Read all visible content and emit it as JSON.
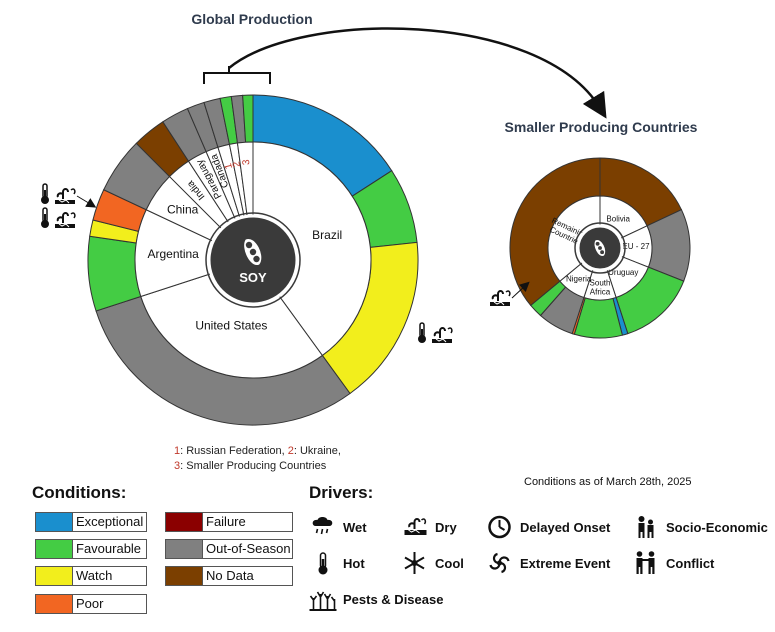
{
  "colors": {
    "exceptional": "#1a8fce",
    "favourable": "#44cc44",
    "watch": "#f2ee1c",
    "poor": "#f26622",
    "failure": "#8b0000",
    "out_of_season": "#808080",
    "no_data": "#7b3f00"
  },
  "footnote": {
    "n1": "1",
    "t1": ": Russian Federation, ",
    "n2": "2",
    "t2": ": Ukraine,",
    "n3": "3",
    "t3": ": Smaller Producing Countries"
  },
  "date_note": "Conditions as of March 28th, 2025",
  "legend": {
    "conditions_title": "Conditions:",
    "conditions": [
      {
        "label": "Exceptional",
        "color": "#1a8fce"
      },
      {
        "label": "Favourable",
        "color": "#44cc44"
      },
      {
        "label": "Watch",
        "color": "#f2ee1c"
      },
      {
        "label": "Poor",
        "color": "#f26622"
      },
      {
        "label": "Failure",
        "color": "#8b0000"
      },
      {
        "label": "Out-of-Season",
        "color": "#808080"
      },
      {
        "label": "No Data",
        "color": "#7b3f00"
      }
    ],
    "drivers_title": "Drivers:",
    "drivers": [
      {
        "label": "Wet",
        "icon": "wet-icon"
      },
      {
        "label": "Dry",
        "icon": "dry-icon"
      },
      {
        "label": "Delayed Onset",
        "icon": "delayed-onset-icon"
      },
      {
        "label": "Socio-Economic",
        "icon": "socio-economic-icon"
      },
      {
        "label": "Hot",
        "icon": "hot-icon"
      },
      {
        "label": "Cool",
        "icon": "cool-icon"
      },
      {
        "label": "Extreme Event",
        "icon": "extreme-event-icon"
      },
      {
        "label": "Conflict",
        "icon": "conflict-icon"
      },
      {
        "label": "Pests & Disease",
        "icon": "pests-disease-icon"
      }
    ]
  },
  "chart_data": [
    {
      "type": "pie",
      "title": "Global Production",
      "center_label": "SOY",
      "inner_ring": [
        {
          "label": "Brazil",
          "value": 40.0
        },
        {
          "label": "United States",
          "value": 30.0
        },
        {
          "label": "Argentina",
          "value": 12.0
        },
        {
          "label": "China",
          "value": 5.5
        },
        {
          "label": "India",
          "value": 3.3
        },
        {
          "label": "Paraguay",
          "value": 2.7
        },
        {
          "label": "Canada",
          "value": 1.7
        },
        {
          "label": "1",
          "value": 1.6
        },
        {
          "label": "2",
          "value": 1.1
        },
        {
          "label": "3",
          "value": 2.1
        }
      ],
      "outer_ring": [
        {
          "country": "Brazil",
          "condition": "exceptional",
          "value": 15.9
        },
        {
          "country": "Brazil",
          "condition": "favourable",
          "value": 7.4
        },
        {
          "country": "Brazil",
          "condition": "watch",
          "value": 16.7,
          "drivers": [
            "hot-icon",
            "dry-icon"
          ]
        },
        {
          "country": "United States",
          "condition": "out_of_season",
          "value": 30.0
        },
        {
          "country": "Argentina",
          "condition": "favourable",
          "value": 7.3
        },
        {
          "country": "Argentina",
          "condition": "watch",
          "value": 1.6,
          "drivers": [
            "hot-icon",
            "dry-icon"
          ]
        },
        {
          "country": "Argentina",
          "condition": "poor",
          "value": 3.1,
          "drivers": [
            "hot-icon",
            "dry-icon"
          ]
        },
        {
          "country": "China",
          "condition": "out_of_season",
          "value": 5.5
        },
        {
          "country": "India",
          "condition": "no_data",
          "value": 3.3
        },
        {
          "country": "Paraguay",
          "condition": "out_of_season",
          "value": 2.7
        },
        {
          "country": "Canada",
          "condition": "out_of_season",
          "value": 1.7
        },
        {
          "country": "1",
          "condition": "out_of_season",
          "value": 1.6
        },
        {
          "country": "2",
          "condition": "favourable",
          "value": 1.1
        },
        {
          "country": "3",
          "condition": "out_of_season",
          "value": 1.1
        },
        {
          "country": "3",
          "condition": "favourable",
          "value": 1.0
        }
      ]
    },
    {
      "type": "pie",
      "title": "Smaller Producing Countries",
      "inner_ring": [
        {
          "label": "Bolivia",
          "value": 18.0
        },
        {
          "label": "EU - 27",
          "value": 13.0
        },
        {
          "label": "Uruguay",
          "value": 14.0
        },
        {
          "label": "South Africa",
          "value": 10.0
        },
        {
          "label": "Nigeria",
          "value": 9.0
        },
        {
          "label": "Remaining Countries",
          "value": 36.0
        }
      ],
      "outer_ring": [
        {
          "country": "Bolivia",
          "condition": "no_data",
          "value": 18.0
        },
        {
          "country": "EU - 27",
          "condition": "out_of_season",
          "value": 13.0
        },
        {
          "country": "Uruguay",
          "condition": "favourable",
          "value": 14.0
        },
        {
          "country": "South Africa",
          "condition": "exceptional",
          "value": 1.0
        },
        {
          "country": "South Africa",
          "condition": "favourable",
          "value": 8.6
        },
        {
          "country": "South Africa",
          "condition": "poor",
          "value": 0.4,
          "drivers": [
            "dry-icon"
          ]
        },
        {
          "country": "Nigeria",
          "condition": "out_of_season",
          "value": 6.5
        },
        {
          "country": "Nigeria",
          "condition": "favourable",
          "value": 2.5
        },
        {
          "country": "Remaining Countries",
          "condition": "no_data",
          "value": 36.0
        }
      ]
    }
  ]
}
